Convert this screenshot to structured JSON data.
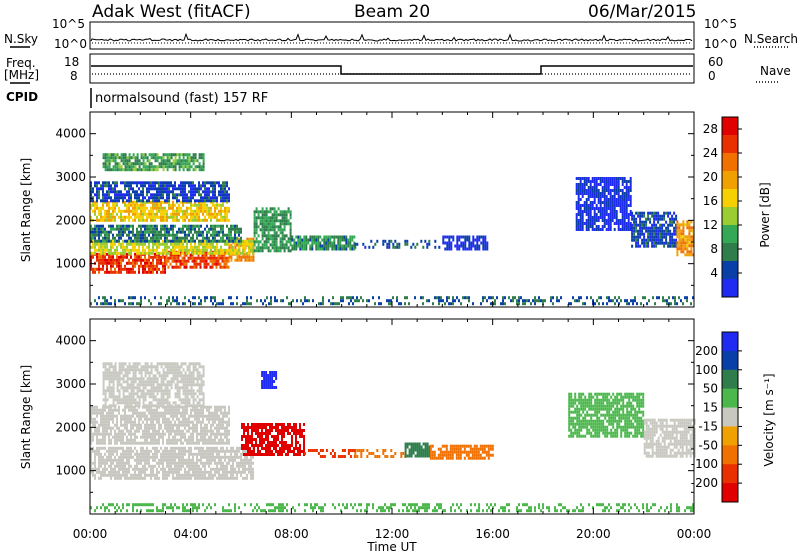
{
  "header": {
    "site": "Adak West (fitACF)",
    "beam": "Beam 20",
    "date": "06/Mar/2015"
  },
  "top_panels": {
    "nsky_label": "N.Sky",
    "nsky_ticks": [
      "10^5",
      "10^0"
    ],
    "nsearch_label": "N.Search",
    "nsearch_ticks": [
      "10^5",
      "10^0"
    ],
    "freq_label": "Freq.",
    "freq_unit": "[MHz]",
    "freq_ticks": [
      "18",
      "8"
    ],
    "nave_label": "Nave",
    "nave_ticks": [
      "60",
      "0"
    ],
    "cpid_label": "CPID",
    "cpid_text": "normalsound (fast) 157 RF"
  },
  "chart_data": [
    {
      "type": "heatmap",
      "name": "power",
      "ylabel": "Slant Range [km]",
      "xlabel": "Time UT",
      "x_range_hours": [
        0,
        24
      ],
      "ylim": [
        0,
        4500
      ],
      "y_ticks": [
        1000,
        2000,
        3000,
        4000
      ],
      "x_ticks": [
        "00:00",
        "04:00",
        "08:00",
        "12:00",
        "16:00",
        "20:00",
        "00:00"
      ],
      "colorbar": {
        "label": "Power [dB]",
        "ticks": [
          "4",
          "8",
          "12",
          "16",
          "20",
          "24",
          "28"
        ],
        "colors": [
          "#1f2bf0",
          "#0a3fa8",
          "#2e7d4a",
          "#35a856",
          "#9acd32",
          "#f6d000",
          "#f0a000",
          "#f07000",
          "#e83000",
          "#e00000"
        ]
      },
      "regions": [
        {
          "t0": 0.0,
          "t1": 3.0,
          "r0": 800,
          "r1": 1250,
          "level": 28
        },
        {
          "t0": 3.0,
          "t1": 5.5,
          "r0": 950,
          "r1": 1300,
          "level": 27
        },
        {
          "t0": 5.5,
          "t1": 6.5,
          "r0": 1100,
          "r1": 1600,
          "level": 23
        },
        {
          "t0": 0.0,
          "t1": 6.5,
          "r0": 1250,
          "r1": 1550,
          "level": 17
        },
        {
          "t0": 0.0,
          "t1": 6.0,
          "r0": 1550,
          "r1": 1900,
          "level": 9
        },
        {
          "t0": 0.0,
          "t1": 5.5,
          "r0": 2000,
          "r1": 2450,
          "level": 19
        },
        {
          "t0": 0.0,
          "t1": 5.5,
          "r0": 2450,
          "r1": 2900,
          "level": 6
        },
        {
          "t0": 0.5,
          "t1": 4.5,
          "r0": 3200,
          "r1": 3550,
          "level": 12
        },
        {
          "t0": 6.5,
          "t1": 8.0,
          "r0": 1300,
          "r1": 2300,
          "level": 11
        },
        {
          "t0": 8.0,
          "t1": 10.5,
          "r0": 1350,
          "r1": 1650,
          "level": 10
        },
        {
          "t0": 10.5,
          "t1": 14.0,
          "r0": 1350,
          "r1": 1550,
          "level": 7
        },
        {
          "t0": 14.0,
          "t1": 15.8,
          "r0": 1350,
          "r1": 1650,
          "level": 4
        },
        {
          "t0": 19.3,
          "t1": 21.5,
          "r0": 1800,
          "r1": 3000,
          "level": 4
        },
        {
          "t0": 21.5,
          "t1": 23.3,
          "r0": 1400,
          "r1": 2200,
          "level": 6
        },
        {
          "t0": 23.3,
          "t1": 24.0,
          "r0": 1200,
          "r1": 2000,
          "level": 22
        },
        {
          "t0": 0.0,
          "t1": 24.0,
          "r0": 80,
          "r1": 250,
          "level": 8
        }
      ]
    },
    {
      "type": "heatmap",
      "name": "velocity",
      "ylabel": "Slant Range [km]",
      "xlabel": "Time UT",
      "x_range_hours": [
        0,
        24
      ],
      "ylim": [
        0,
        4500
      ],
      "y_ticks": [
        1000,
        2000,
        3000,
        4000
      ],
      "x_ticks": [
        "00:00",
        "04:00",
        "08:00",
        "12:00",
        "16:00",
        "20:00",
        "00:00"
      ],
      "colorbar": {
        "label": "Velocity [m s⁻¹]",
        "ticks": [
          "200",
          "100",
          "50",
          "15",
          "-15",
          "-50",
          "-100",
          "-200"
        ],
        "colors": [
          "#1f2bf0",
          "#0a3fa8",
          "#2e7d4a",
          "#4cb84c",
          "#c8c8c0",
          "#f0a000",
          "#f07000",
          "#e83000",
          "#e00000"
        ]
      },
      "regions": [
        {
          "t0": 0.0,
          "t1": 6.5,
          "r0": 800,
          "r1": 1550,
          "level": 0
        },
        {
          "t0": 0.0,
          "t1": 5.5,
          "r0": 1600,
          "r1": 2500,
          "level": 0
        },
        {
          "t0": 0.5,
          "t1": 4.5,
          "r0": 2500,
          "r1": 3500,
          "level": 0
        },
        {
          "t0": 6.0,
          "t1": 8.5,
          "r0": 1400,
          "r1": 2100,
          "level": -200
        },
        {
          "t0": 8.5,
          "t1": 10.5,
          "r0": 1300,
          "r1": 1500,
          "level": -100
        },
        {
          "t0": 10.5,
          "t1": 12.5,
          "r0": 1300,
          "r1": 1500,
          "level": -50
        },
        {
          "t0": 12.5,
          "t1": 13.5,
          "r0": 1350,
          "r1": 1650,
          "level": 50
        },
        {
          "t0": 13.5,
          "t1": 16.0,
          "r0": 1300,
          "r1": 1600,
          "level": -50
        },
        {
          "t0": 6.8,
          "t1": 7.4,
          "r0": 2950,
          "r1": 3300,
          "level": 200
        },
        {
          "t0": 19.0,
          "t1": 22.0,
          "r0": 1800,
          "r1": 2800,
          "level": 15
        },
        {
          "t0": 22.0,
          "t1": 24.0,
          "r0": 1300,
          "r1": 2200,
          "level": 0
        },
        {
          "t0": 0.0,
          "t1": 24.0,
          "r0": 80,
          "r1": 250,
          "level": 15
        }
      ]
    }
  ]
}
